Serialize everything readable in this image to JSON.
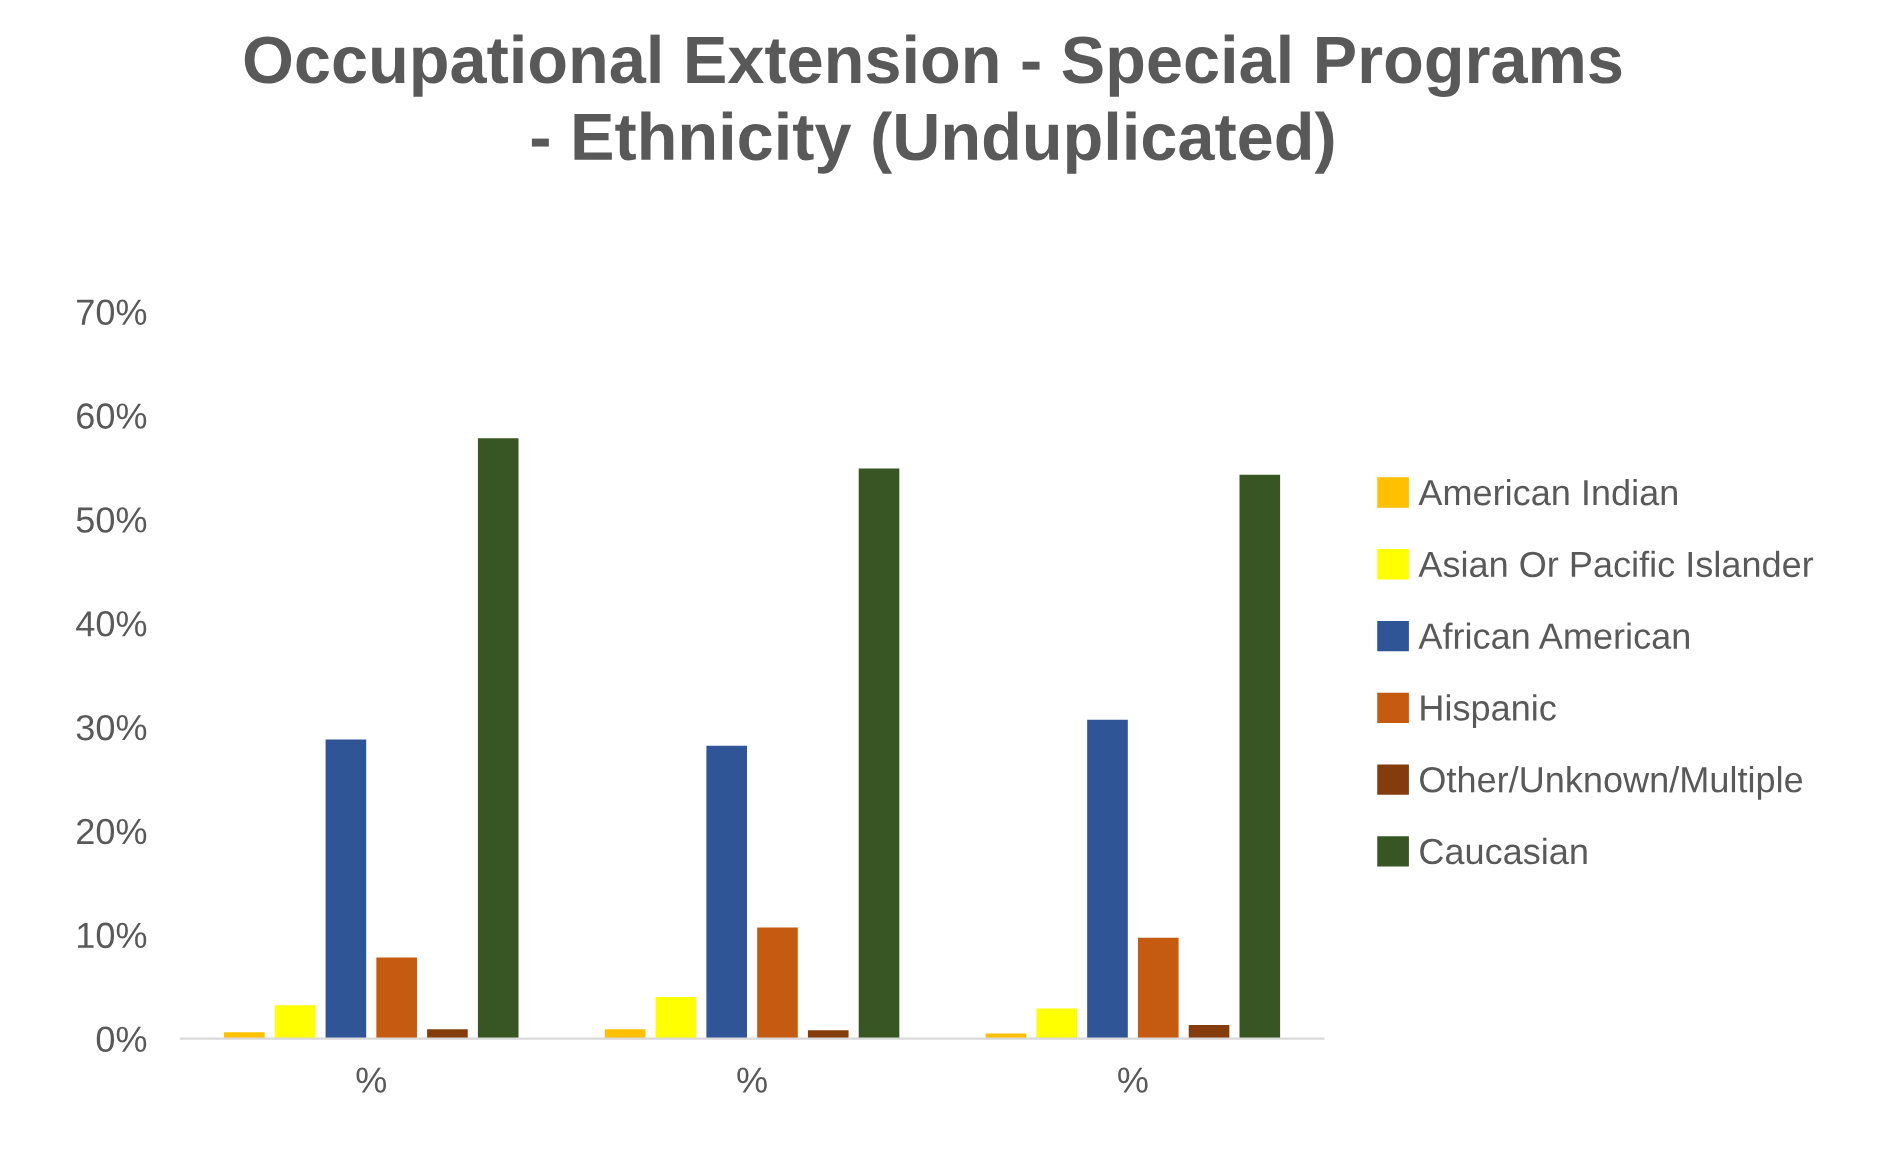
{
  "chart_data": {
    "type": "bar",
    "title": "Occupational Extension - Special Programs\n- Ethnicity (Unduplicated)",
    "categories": [
      "%",
      "%",
      "%"
    ],
    "series": [
      {
        "name": "American Indian",
        "color": "#ffc000",
        "values": [
          0.6,
          0.9,
          0.5
        ]
      },
      {
        "name": "Asian Or Pacific Islander",
        "color": "#ffff00",
        "values": [
          3.2,
          4.0,
          2.9
        ]
      },
      {
        "name": "African American",
        "color": "#2f5597",
        "values": [
          28.8,
          28.2,
          30.7
        ]
      },
      {
        "name": "Hispanic",
        "color": "#c55a11",
        "values": [
          7.8,
          10.7,
          9.7
        ]
      },
      {
        "name": "Other/Unknown/Multiple",
        "color": "#843c0c",
        "values": [
          0.9,
          0.8,
          1.3
        ]
      },
      {
        "name": "Caucasian",
        "color": "#375623",
        "values": [
          57.8,
          54.9,
          54.3
        ]
      }
    ],
    "ylim": [
      0,
      70
    ],
    "yticks": [
      {
        "value": 0,
        "label": "0%"
      },
      {
        "value": 10,
        "label": "10%"
      },
      {
        "value": 20,
        "label": "20%"
      },
      {
        "value": 30,
        "label": "30%"
      },
      {
        "value": 40,
        "label": "40%"
      },
      {
        "value": 50,
        "label": "50%"
      },
      {
        "value": 60,
        "label": "60%"
      },
      {
        "value": 70,
        "label": "70%"
      }
    ],
    "grid": false,
    "legend": "right"
  }
}
